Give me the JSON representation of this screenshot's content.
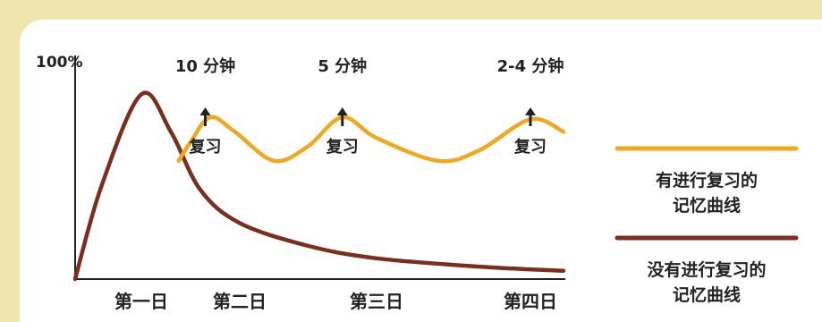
{
  "chart_data": {
    "type": "line",
    "y_top_label": "100%",
    "categories": [
      "第一日",
      "第二日",
      "第三日",
      "第四日"
    ],
    "series": [
      {
        "name": "有进行复习的记忆曲线",
        "color": "#f0a91e",
        "points": [
          [
            1.38,
            57
          ],
          [
            1.5,
            66
          ],
          [
            1.7,
            78
          ],
          [
            1.95,
            71
          ],
          [
            2.25,
            57
          ],
          [
            2.5,
            64
          ],
          [
            2.75,
            78
          ],
          [
            3.0,
            68
          ],
          [
            3.3,
            57
          ],
          [
            3.5,
            62
          ],
          [
            3.75,
            77
          ],
          [
            4.0,
            71
          ]
        ]
      },
      {
        "name": "没有进行复习的记忆曲线",
        "color": "#7a2e1e",
        "points": [
          [
            0,
            0
          ],
          [
            0.4,
            45
          ],
          [
            1.0,
            89
          ],
          [
            1.3,
            71
          ],
          [
            1.6,
            43
          ],
          [
            2.0,
            27
          ],
          [
            2.5,
            16
          ],
          [
            3.0,
            10
          ],
          [
            3.5,
            6
          ],
          [
            4.0,
            4
          ]
        ]
      }
    ],
    "annotations": [
      {
        "x": 1.65,
        "interval": "10 分钟",
        "label": "复习"
      },
      {
        "x": 2.75,
        "interval": "5 分钟",
        "label": "复习"
      },
      {
        "x": 3.75,
        "interval": "2-4 分钟",
        "label": "复习"
      }
    ],
    "legend": [
      {
        "text_line1": "有进行复习的",
        "text_line2": "记忆曲线",
        "color": "#f0a91e"
      },
      {
        "text_line1": "没有进行复习的",
        "text_line2": "记忆曲线",
        "color": "#7a2e1e"
      }
    ],
    "legend_placement": "right",
    "grid": false
  }
}
